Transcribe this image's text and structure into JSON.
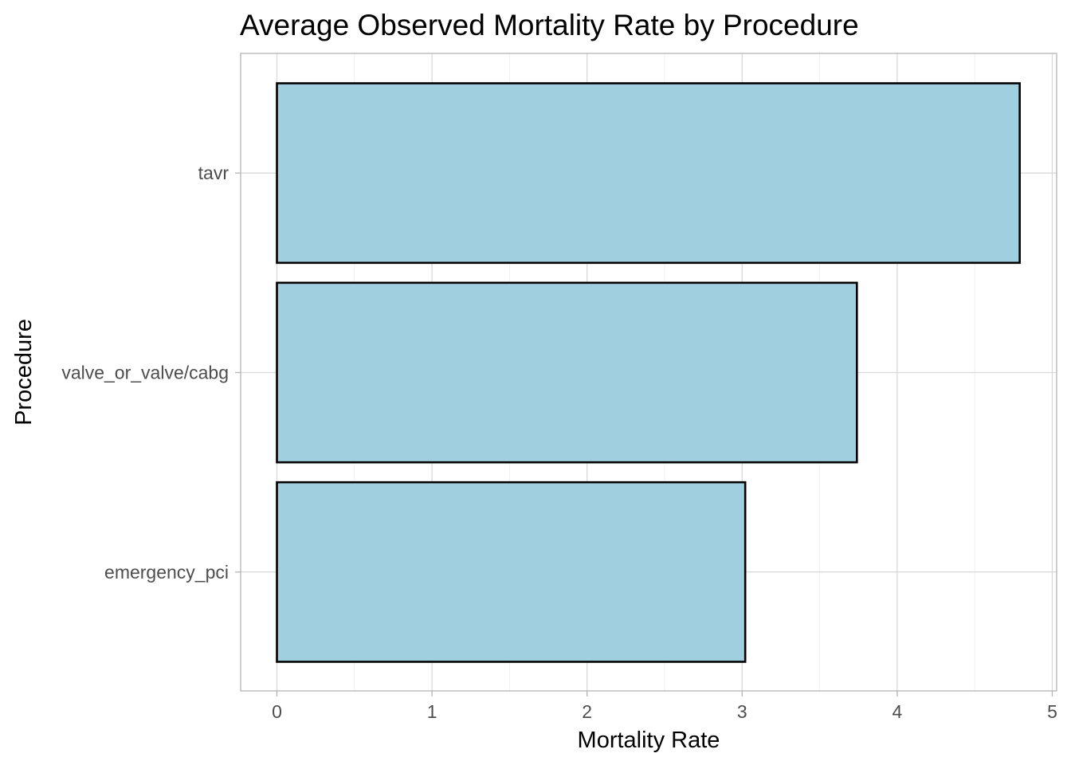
{
  "chart_data": {
    "type": "bar",
    "orientation": "horizontal",
    "title": "Average Observed Mortality Rate by Procedure",
    "xlabel": "Mortality Rate",
    "ylabel": "Procedure",
    "categories": [
      "emergency_pci",
      "valve_or_valve/cabg",
      "tavr"
    ],
    "values": [
      3.02,
      3.74,
      4.79
    ],
    "xlim": [
      0,
      5
    ],
    "xticks": [
      "0",
      "1",
      "2",
      "3",
      "4",
      "5"
    ],
    "grid": true,
    "bar_fill": "#a0cfe0",
    "bar_outline": "#000000"
  }
}
